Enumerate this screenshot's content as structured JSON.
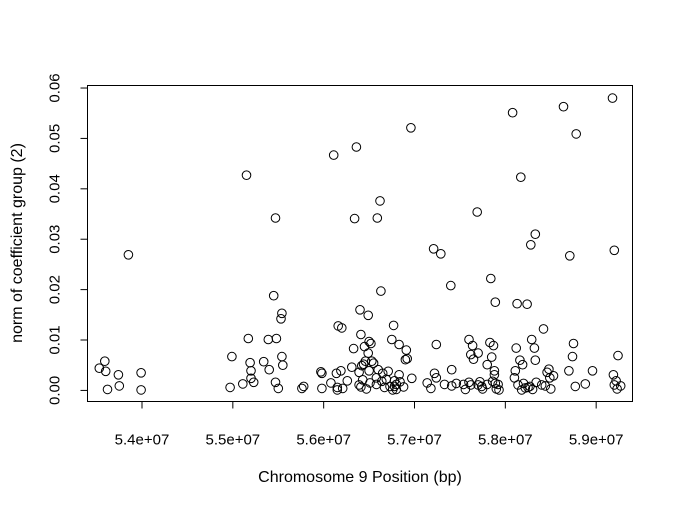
{
  "chart_data": {
    "type": "scatter",
    "xlabel": "Chromosome 9 Position (bp)",
    "ylabel": "norm of coefficient group (2)",
    "xlim": [
      53400000,
      59400000
    ],
    "ylim": [
      -0.0022,
      0.0605
    ],
    "x_ticks": [
      54000000,
      55000000,
      56000000,
      57000000,
      58000000,
      59000000
    ],
    "x_tick_labels": [
      "5.4e+07",
      "5.5e+07",
      "5.6e+07",
      "5.7e+07",
      "5.8e+07",
      "5.9e+07"
    ],
    "y_ticks": [
      0.0,
      0.01,
      0.02,
      0.03,
      0.04,
      0.05,
      0.06
    ],
    "y_tick_labels": [
      "0.00",
      "0.01",
      "0.02",
      "0.03",
      "0.04",
      "0.05",
      "0.06"
    ],
    "grid": false,
    "marker": "open-circle",
    "points": [
      [
        53530000,
        0.0044
      ],
      [
        53590000,
        0.0058
      ],
      [
        53600000,
        0.0038
      ],
      [
        53620000,
        0.0002
      ],
      [
        53740000,
        0.0031
      ],
      [
        53750000,
        0.0009
      ],
      [
        53850000,
        0.0269
      ],
      [
        53990000,
        0.0035
      ],
      [
        53990000,
        0.0001
      ],
      [
        54970000,
        0.0006
      ],
      [
        54990000,
        0.0067
      ],
      [
        55110000,
        0.0013
      ],
      [
        55150000,
        0.0427
      ],
      [
        55170000,
        0.0103
      ],
      [
        55190000,
        0.0055
      ],
      [
        55200000,
        0.0039
      ],
      [
        55200000,
        0.0024
      ],
      [
        55230000,
        0.0016
      ],
      [
        55340000,
        0.0057
      ],
      [
        55390000,
        0.0101
      ],
      [
        55400000,
        0.0041
      ],
      [
        55450000,
        0.0188
      ],
      [
        55470000,
        0.0342
      ],
      [
        55470000,
        0.0016
      ],
      [
        55480000,
        0.0103
      ],
      [
        55500000,
        0.0004
      ],
      [
        55530000,
        0.0142
      ],
      [
        55540000,
        0.0153
      ],
      [
        55540000,
        0.0067
      ],
      [
        55550000,
        0.005
      ],
      [
        55760000,
        0.0004
      ],
      [
        55780000,
        0.0008
      ],
      [
        55970000,
        0.0037
      ],
      [
        55980000,
        0.0034
      ],
      [
        55980000,
        0.0004
      ],
      [
        56080000,
        0.0015
      ],
      [
        56110000,
        0.0467
      ],
      [
        56140000,
        0.0034
      ],
      [
        56150000,
        0.0006
      ],
      [
        56150000,
        0.0001
      ],
      [
        56160000,
        0.0128
      ],
      [
        56190000,
        0.0039
      ],
      [
        56200000,
        0.0124
      ],
      [
        56210000,
        0.0004
      ],
      [
        56260000,
        0.0019
      ],
      [
        56310000,
        0.0046
      ],
      [
        56330000,
        0.0083
      ],
      [
        56340000,
        0.0341
      ],
      [
        56360000,
        0.0483
      ],
      [
        56390000,
        0.0036
      ],
      [
        56390000,
        0.0011
      ],
      [
        56400000,
        0.016
      ],
      [
        56410000,
        0.0007
      ],
      [
        56410000,
        0.0111
      ],
      [
        56420000,
        0.0049
      ],
      [
        56430000,
        0.0021
      ],
      [
        56440000,
        0.0052
      ],
      [
        56450000,
        0.0087
      ],
      [
        56460000,
        0.0058
      ],
      [
        56470000,
        0.0003
      ],
      [
        56490000,
        0.0149
      ],
      [
        56490000,
        0.0074
      ],
      [
        56500000,
        0.0097
      ],
      [
        56500000,
        0.0039
      ],
      [
        56510000,
        0.0015
      ],
      [
        56520000,
        0.0093
      ],
      [
        56530000,
        0.0058
      ],
      [
        56550000,
        0.0054
      ],
      [
        56580000,
        0.0012
      ],
      [
        56580000,
        0.0025
      ],
      [
        56590000,
        0.0342
      ],
      [
        56600000,
        0.0041
      ],
      [
        56620000,
        0.0376
      ],
      [
        56630000,
        0.0197
      ],
      [
        56640000,
        0.0018
      ],
      [
        56650000,
        0.0034
      ],
      [
        56670000,
        0.0006
      ],
      [
        56690000,
        0.0022
      ],
      [
        56710000,
        0.0038
      ],
      [
        56730000,
        0.0008
      ],
      [
        56750000,
        0.0101
      ],
      [
        56760000,
        0.0001
      ],
      [
        56770000,
        0.0129
      ],
      [
        56780000,
        0.0019
      ],
      [
        56780000,
        0.0008
      ],
      [
        56800000,
        0.0012
      ],
      [
        56800000,
        0.0002
      ],
      [
        56830000,
        0.0091
      ],
      [
        56830000,
        0.0031
      ],
      [
        56840000,
        0.0017
      ],
      [
        56880000,
        0.0007
      ],
      [
        56900000,
        0.0061
      ],
      [
        56910000,
        0.008
      ],
      [
        56920000,
        0.0063
      ],
      [
        56960000,
        0.0521
      ],
      [
        56970000,
        0.0024
      ],
      [
        57140000,
        0.0015
      ],
      [
        57180000,
        0.0004
      ],
      [
        57210000,
        0.0281
      ],
      [
        57220000,
        0.0034
      ],
      [
        57240000,
        0.0091
      ],
      [
        57240000,
        0.0025
      ],
      [
        57290000,
        0.0271
      ],
      [
        57330000,
        0.0012
      ],
      [
        57400000,
        0.0208
      ],
      [
        57410000,
        0.0041
      ],
      [
        57410000,
        0.0009
      ],
      [
        57460000,
        0.0014
      ],
      [
        57540000,
        0.0012
      ],
      [
        57560000,
        0.0002
      ],
      [
        57600000,
        0.0101
      ],
      [
        57600000,
        0.0016
      ],
      [
        57620000,
        0.0071
      ],
      [
        57620000,
        0.0011
      ],
      [
        57640000,
        0.0089
      ],
      [
        57650000,
        0.0062
      ],
      [
        57690000,
        0.0354
      ],
      [
        57700000,
        0.0074
      ],
      [
        57700000,
        0.0011
      ],
      [
        57720000,
        0.0017
      ],
      [
        57740000,
        0.0008
      ],
      [
        57750000,
        0.0003
      ],
      [
        57800000,
        0.0012
      ],
      [
        57800000,
        0.0051
      ],
      [
        57830000,
        0.0095
      ],
      [
        57840000,
        0.0222
      ],
      [
        57850000,
        0.0066
      ],
      [
        57860000,
        0.0018
      ],
      [
        57870000,
        0.0089
      ],
      [
        57880000,
        0.0039
      ],
      [
        57880000,
        0.0031
      ],
      [
        57890000,
        0.0175
      ],
      [
        57890000,
        0.0014
      ],
      [
        57900000,
        0.0003
      ],
      [
        57920000,
        0.0012
      ],
      [
        57930000,
        0.0001
      ],
      [
        58080000,
        0.0551
      ],
      [
        58100000,
        0.0025
      ],
      [
        58110000,
        0.0039
      ],
      [
        58120000,
        0.0084
      ],
      [
        58130000,
        0.0172
      ],
      [
        58140000,
        0.0011
      ],
      [
        58160000,
        0.006
      ],
      [
        58170000,
        0.0423
      ],
      [
        58180000,
        0.0001
      ],
      [
        58190000,
        0.0051
      ],
      [
        58200000,
        0.0014
      ],
      [
        58220000,
        0.0005
      ],
      [
        58240000,
        0.0171
      ],
      [
        58250000,
        0.0006
      ],
      [
        58270000,
        0.0008
      ],
      [
        58280000,
        0.0289
      ],
      [
        58290000,
        0.0101
      ],
      [
        58300000,
        0.0002
      ],
      [
        58320000,
        0.0084
      ],
      [
        58330000,
        0.006
      ],
      [
        58330000,
        0.031
      ],
      [
        58340000,
        0.0016
      ],
      [
        58400000,
        0.0011
      ],
      [
        58420000,
        0.0122
      ],
      [
        58440000,
        0.0009
      ],
      [
        58460000,
        0.0036
      ],
      [
        58480000,
        0.0042
      ],
      [
        58490000,
        0.0025
      ],
      [
        58500000,
        0.0003
      ],
      [
        58530000,
        0.0029
      ],
      [
        58640000,
        0.0563
      ],
      [
        58700000,
        0.0039
      ],
      [
        58710000,
        0.0267
      ],
      [
        58740000,
        0.0067
      ],
      [
        58750000,
        0.0093
      ],
      [
        58770000,
        0.0008
      ],
      [
        58780000,
        0.0509
      ],
      [
        58880000,
        0.0013
      ],
      [
        58960000,
        0.0039
      ],
      [
        59180000,
        0.058
      ],
      [
        59190000,
        0.0031
      ],
      [
        59200000,
        0.0278
      ],
      [
        59200000,
        0.0011
      ],
      [
        59220000,
        0.0019
      ],
      [
        59230000,
        0.0003
      ],
      [
        59240000,
        0.0069
      ],
      [
        59270000,
        0.0009
      ]
    ]
  }
}
